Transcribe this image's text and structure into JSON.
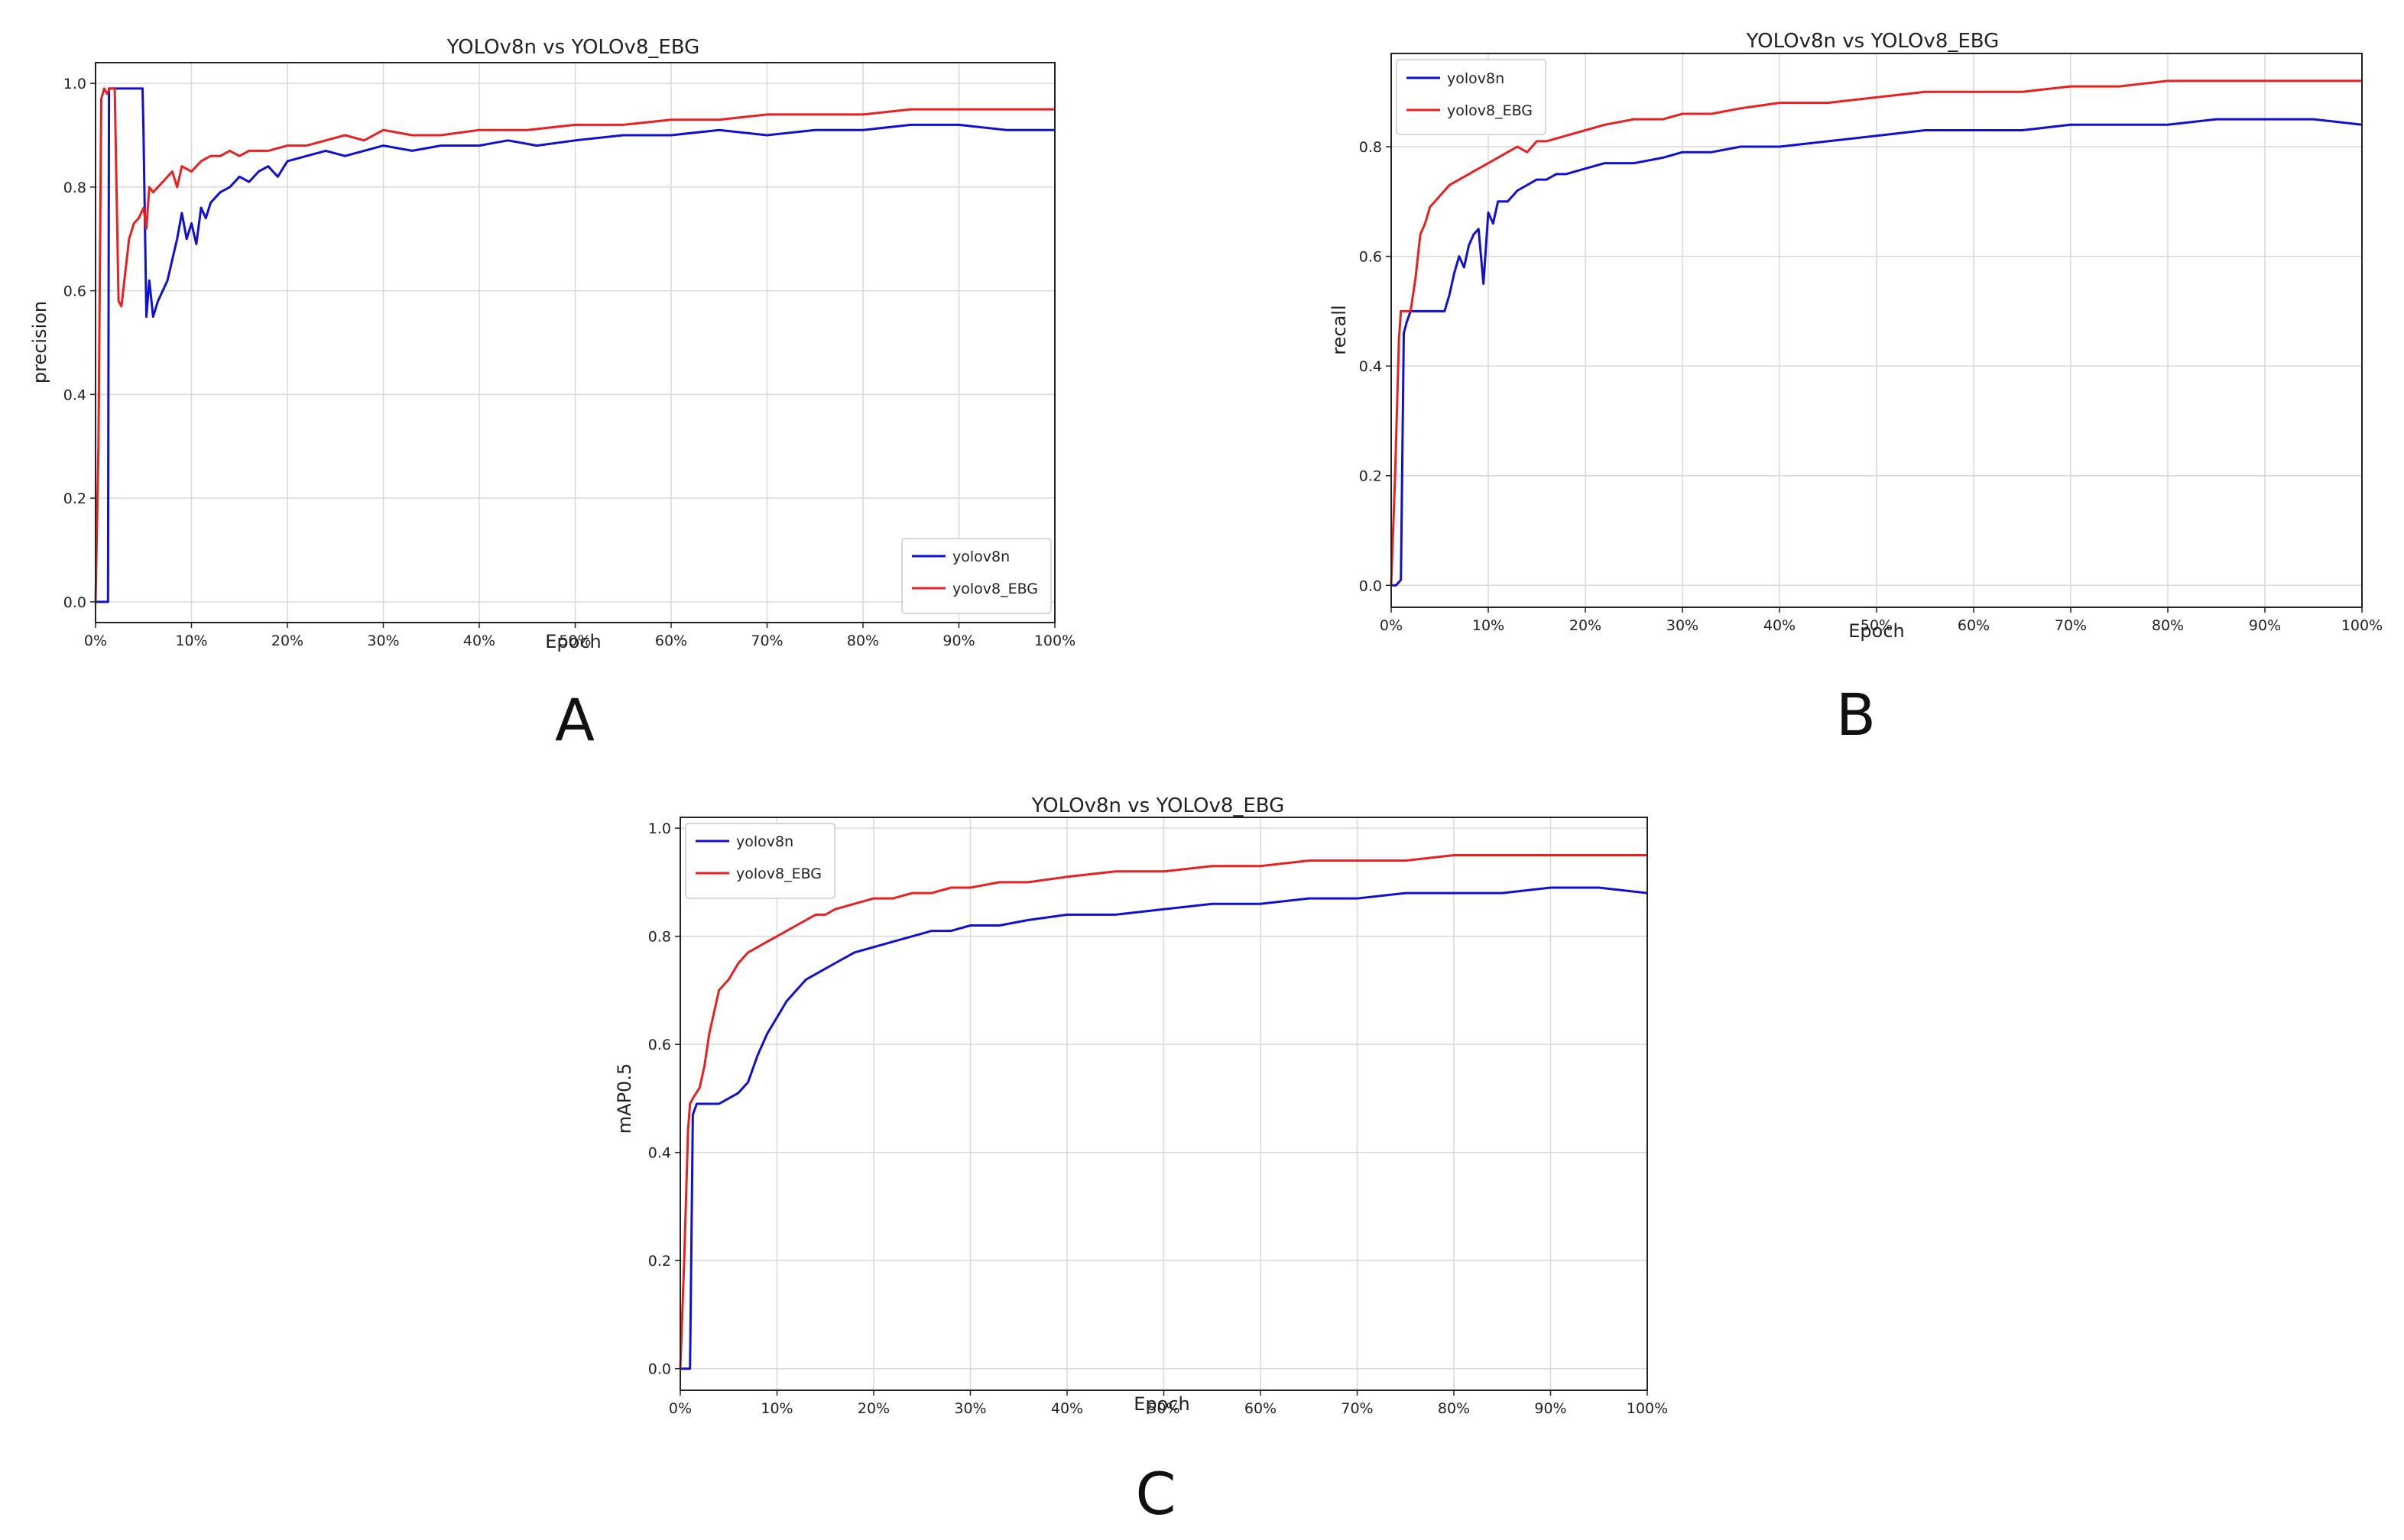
{
  "panel_letters": [
    "A",
    "B",
    "C"
  ],
  "chart_data": [
    {
      "type": "line",
      "title": "YOLOv8n vs YOLOv8_EBG",
      "xlabel": "Epoch",
      "ylabel": "precision",
      "xlim": [
        0,
        100
      ],
      "ylim": [
        -0.04,
        1.04
      ],
      "xticks": [
        0,
        10,
        20,
        30,
        40,
        50,
        60,
        70,
        80,
        90,
        100
      ],
      "xtick_labels": [
        "0%",
        "10%",
        "20%",
        "30%",
        "40%",
        "50%",
        "60%",
        "70%",
        "80%",
        "90%",
        "100%"
      ],
      "yticks": [
        0,
        0.2,
        0.4,
        0.6,
        0.8,
        1.0
      ],
      "ytick_labels": [
        "0.0",
        "0.2",
        "0.4",
        "0.6",
        "0.8",
        "1.0"
      ],
      "grid": true,
      "legend_position": "lower-right",
      "series": [
        {
          "name": "yolov8n",
          "color": "#1010d0",
          "x": [
            0,
            0.5,
            0.8,
            1.0,
            1.3,
            1.4,
            2,
            3,
            4,
            4.9,
            5.0,
            5.3,
            5.6,
            6,
            6.5,
            7,
            7.5,
            8,
            8.5,
            9,
            9.5,
            10,
            10.5,
            11,
            11.5,
            12,
            13,
            14,
            15,
            16,
            17,
            18,
            19,
            20,
            22,
            24,
            26,
            28,
            30,
            33,
            36,
            40,
            43,
            46,
            50,
            55,
            60,
            65,
            70,
            75,
            80,
            85,
            90,
            95,
            100
          ],
          "y": [
            0,
            0,
            0,
            0,
            0,
            0.99,
            0.99,
            0.99,
            0.99,
            0.99,
            0.9,
            0.55,
            0.62,
            0.55,
            0.58,
            0.6,
            0.62,
            0.66,
            0.7,
            0.75,
            0.7,
            0.73,
            0.69,
            0.76,
            0.74,
            0.77,
            0.79,
            0.8,
            0.82,
            0.81,
            0.83,
            0.84,
            0.82,
            0.85,
            0.86,
            0.87,
            0.86,
            0.87,
            0.88,
            0.87,
            0.88,
            0.88,
            0.89,
            0.88,
            0.89,
            0.9,
            0.9,
            0.91,
            0.9,
            0.91,
            0.91,
            0.92,
            0.92,
            0.91,
            0.91
          ]
        },
        {
          "name": "yolov8_EBG",
          "color": "#e82020",
          "x": [
            0,
            0.3,
            0.6,
            0.9,
            1.2,
            1.5,
            2,
            2.4,
            2.7,
            3,
            3.5,
            4,
            4.5,
            5,
            5.3,
            5.6,
            6,
            7,
            8,
            8.5,
            9,
            10,
            11,
            12,
            13,
            14,
            15,
            16,
            18,
            20,
            22,
            24,
            26,
            28,
            30,
            33,
            36,
            40,
            45,
            50,
            55,
            60,
            65,
            70,
            75,
            80,
            85,
            90,
            95,
            100
          ],
          "y": [
            0,
            0.3,
            0.97,
            0.99,
            0.98,
            0.99,
            0.99,
            0.58,
            0.57,
            0.62,
            0.7,
            0.73,
            0.74,
            0.76,
            0.72,
            0.8,
            0.79,
            0.81,
            0.83,
            0.8,
            0.84,
            0.83,
            0.85,
            0.86,
            0.86,
            0.87,
            0.86,
            0.87,
            0.87,
            0.88,
            0.88,
            0.89,
            0.9,
            0.89,
            0.91,
            0.9,
            0.9,
            0.91,
            0.91,
            0.92,
            0.92,
            0.93,
            0.93,
            0.94,
            0.94,
            0.94,
            0.95,
            0.95,
            0.95,
            0.95
          ]
        }
      ]
    },
    {
      "type": "line",
      "title": "YOLOv8n vs YOLOv8_EBG",
      "xlabel": "Epoch",
      "ylabel": "recall",
      "xlim": [
        0,
        100
      ],
      "ylim": [
        -0.04,
        0.97
      ],
      "xticks": [
        0,
        10,
        20,
        30,
        40,
        50,
        60,
        70,
        80,
        90,
        100
      ],
      "xtick_labels": [
        "0%",
        "10%",
        "20%",
        "30%",
        "40%",
        "50%",
        "60%",
        "70%",
        "80%",
        "90%",
        "100%"
      ],
      "yticks": [
        0,
        0.2,
        0.4,
        0.6,
        0.8
      ],
      "ytick_labels": [
        "0.0",
        "0.2",
        "0.4",
        "0.6",
        "0.8"
      ],
      "grid": true,
      "legend_position": "top-left",
      "series": [
        {
          "name": "yolov8n",
          "color": "#1010d0",
          "x": [
            0,
            0.5,
            1.0,
            1.3,
            1.6,
            2,
            3,
            4,
            5,
            5.5,
            6,
            6.5,
            7,
            7.5,
            8,
            8.5,
            9,
            9.5,
            10,
            10.5,
            11,
            12,
            13,
            14,
            15,
            16,
            17,
            18,
            20,
            22,
            25,
            28,
            30,
            33,
            36,
            40,
            45,
            50,
            55,
            60,
            65,
            70,
            75,
            80,
            85,
            90,
            95,
            100
          ],
          "y": [
            0,
            0,
            0.01,
            0.46,
            0.48,
            0.5,
            0.5,
            0.5,
            0.5,
            0.5,
            0.53,
            0.57,
            0.6,
            0.58,
            0.62,
            0.64,
            0.65,
            0.55,
            0.68,
            0.66,
            0.7,
            0.7,
            0.72,
            0.73,
            0.74,
            0.74,
            0.75,
            0.75,
            0.76,
            0.77,
            0.77,
            0.78,
            0.79,
            0.79,
            0.8,
            0.8,
            0.81,
            0.82,
            0.83,
            0.83,
            0.83,
            0.84,
            0.84,
            0.84,
            0.85,
            0.85,
            0.85,
            0.84
          ]
        },
        {
          "name": "yolov8_EBG",
          "color": "#e82020",
          "x": [
            0,
            0.4,
            0.8,
            1.0,
            1.3,
            2,
            2.5,
            3,
            3.5,
            4,
            5,
            6,
            7,
            8,
            9,
            10,
            11,
            12,
            13,
            14,
            15,
            16,
            18,
            20,
            22,
            25,
            28,
            30,
            33,
            36,
            40,
            45,
            50,
            55,
            60,
            65,
            70,
            75,
            80,
            85,
            90,
            95,
            100
          ],
          "y": [
            0,
            0.2,
            0.45,
            0.5,
            0.5,
            0.5,
            0.56,
            0.64,
            0.66,
            0.69,
            0.71,
            0.73,
            0.74,
            0.75,
            0.76,
            0.77,
            0.78,
            0.79,
            0.8,
            0.79,
            0.81,
            0.81,
            0.82,
            0.83,
            0.84,
            0.85,
            0.85,
            0.86,
            0.86,
            0.87,
            0.88,
            0.88,
            0.89,
            0.9,
            0.9,
            0.9,
            0.91,
            0.91,
            0.92,
            0.92,
            0.92,
            0.92,
            0.92
          ]
        }
      ]
    },
    {
      "type": "line",
      "title": "YOLOv8n vs YOLOv8_EBG",
      "xlabel": "Epoch",
      "ylabel": "mAP0.5",
      "xlim": [
        0,
        100
      ],
      "ylim": [
        -0.04,
        1.02
      ],
      "xticks": [
        0,
        10,
        20,
        30,
        40,
        50,
        60,
        70,
        80,
        90,
        100
      ],
      "xtick_labels": [
        "0%",
        "10%",
        "20%",
        "30%",
        "40%",
        "50%",
        "60%",
        "70%",
        "80%",
        "90%",
        "100%"
      ],
      "yticks": [
        0,
        0.2,
        0.4,
        0.6,
        0.8,
        1.0
      ],
      "ytick_labels": [
        "0.0",
        "0.2",
        "0.4",
        "0.6",
        "0.8",
        "1.0"
      ],
      "grid": true,
      "legend_position": "top-left",
      "series": [
        {
          "name": "yolov8n",
          "color": "#1010d0",
          "x": [
            0,
            0.6,
            1.0,
            1.3,
            1.7,
            2,
            3,
            4,
            5,
            6,
            7,
            8,
            9,
            10,
            11,
            12,
            13,
            14,
            15,
            16,
            18,
            20,
            22,
            24,
            26,
            28,
            30,
            33,
            36,
            40,
            45,
            50,
            55,
            60,
            65,
            70,
            75,
            80,
            85,
            90,
            95,
            100
          ],
          "y": [
            0,
            0,
            0,
            0.47,
            0.49,
            0.49,
            0.49,
            0.49,
            0.5,
            0.51,
            0.53,
            0.58,
            0.62,
            0.65,
            0.68,
            0.7,
            0.72,
            0.73,
            0.74,
            0.75,
            0.77,
            0.78,
            0.79,
            0.8,
            0.81,
            0.81,
            0.82,
            0.82,
            0.83,
            0.84,
            0.84,
            0.85,
            0.86,
            0.86,
            0.87,
            0.87,
            0.88,
            0.88,
            0.88,
            0.89,
            0.89,
            0.88
          ]
        },
        {
          "name": "yolov8_EBG",
          "color": "#e82020",
          "x": [
            0,
            0.4,
            0.8,
            1.0,
            1.3,
            2,
            2.5,
            3,
            3.5,
            4,
            5,
            6,
            7,
            8,
            9,
            10,
            11,
            12,
            13,
            14,
            15,
            16,
            18,
            20,
            22,
            24,
            26,
            28,
            30,
            33,
            36,
            40,
            45,
            50,
            55,
            60,
            65,
            70,
            75,
            80,
            85,
            90,
            95,
            100
          ],
          "y": [
            0,
            0.2,
            0.44,
            0.49,
            0.5,
            0.52,
            0.56,
            0.62,
            0.66,
            0.7,
            0.72,
            0.75,
            0.77,
            0.78,
            0.79,
            0.8,
            0.81,
            0.82,
            0.83,
            0.84,
            0.84,
            0.85,
            0.86,
            0.87,
            0.87,
            0.88,
            0.88,
            0.89,
            0.89,
            0.9,
            0.9,
            0.91,
            0.92,
            0.92,
            0.93,
            0.93,
            0.94,
            0.94,
            0.94,
            0.95,
            0.95,
            0.95,
            0.95,
            0.95
          ]
        }
      ]
    }
  ]
}
